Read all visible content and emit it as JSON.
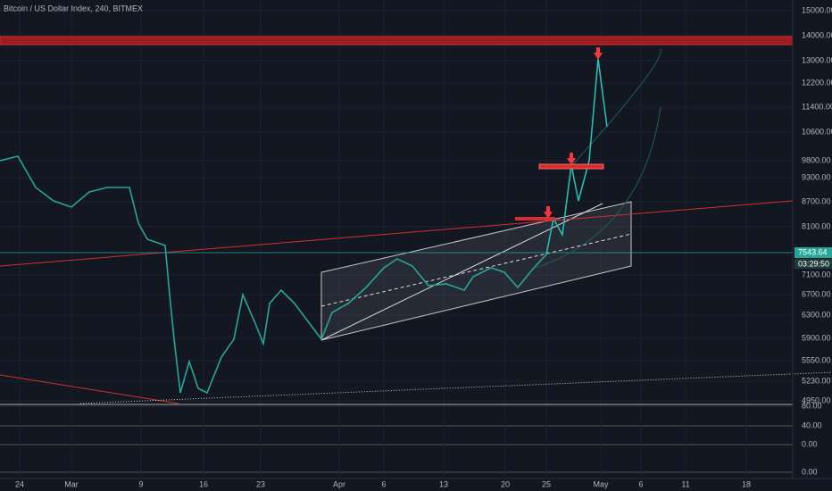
{
  "header": {
    "title": "Bitcoin / US Dollar Index, 240, BITMEX"
  },
  "price_axis": {
    "labels": [
      "15000.00",
      "14000.00",
      "13000.00",
      "12200.00",
      "11400.00",
      "10600.00",
      "9800.00",
      "9300.00",
      "8700.00",
      "8100.00",
      "7100.00",
      "6700.00",
      "6300.00",
      "5900.00",
      "5550.00",
      "5230.00",
      "4950.00"
    ]
  },
  "price_tags": [
    "7543.64",
    "03:29:50"
  ],
  "indicator_axis": {
    "labels": [
      "80.00",
      "40.00",
      "0.00",
      "0.00"
    ]
  },
  "date_axis": {
    "labels": [
      "24",
      "Mar",
      "9",
      "16",
      "23",
      "Apr",
      "6",
      "13",
      "20",
      "25",
      "May",
      "6",
      "11",
      "18"
    ]
  }
}
